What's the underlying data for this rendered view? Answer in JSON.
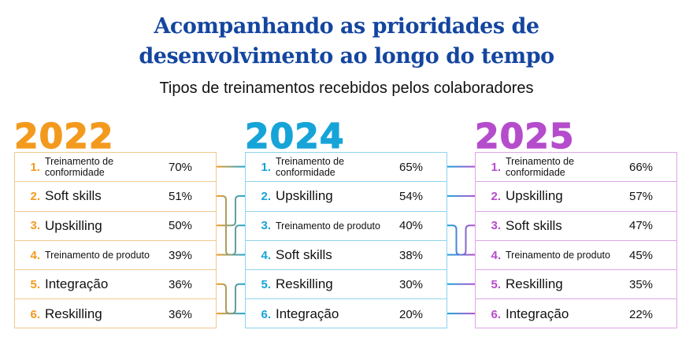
{
  "title_lines": [
    "Acompanhando as prioridades de",
    "desenvolvimento ao longo do tempo"
  ],
  "subtitle": "Tipos de treinamentos recebidos pelos colaboradores",
  "columns": [
    {
      "year": "2022",
      "color": "#f39a1e",
      "border": "#f2c98e",
      "items": [
        {
          "rank": "1.",
          "name": "Treinamento de conformidade",
          "pct": "70%"
        },
        {
          "rank": "2.",
          "name": "Soft skills",
          "pct": "51%"
        },
        {
          "rank": "3.",
          "name": "Upskilling",
          "pct": "50%"
        },
        {
          "rank": "4.",
          "name": "Treinamento de produto",
          "pct": "39%"
        },
        {
          "rank": "5.",
          "name": "Integração",
          "pct": "36%"
        },
        {
          "rank": "6.",
          "name": "Reskilling",
          "pct": "36%"
        }
      ]
    },
    {
      "year": "2024",
      "color": "#16a4d8",
      "border": "#8fd3ec",
      "items": [
        {
          "rank": "1.",
          "name": "Treinamento de conformidade",
          "pct": "65%"
        },
        {
          "rank": "2.",
          "name": "Upskilling",
          "pct": "54%"
        },
        {
          "rank": "3.",
          "name": "Treinamento de produto",
          "pct": "40%"
        },
        {
          "rank": "4.",
          "name": "Soft skills",
          "pct": "38%"
        },
        {
          "rank": "5.",
          "name": "Reskilling",
          "pct": "30%"
        },
        {
          "rank": "6.",
          "name": "Integração",
          "pct": "20%"
        }
      ]
    },
    {
      "year": "2025",
      "color": "#b54ccc",
      "border": "#dca6e6",
      "items": [
        {
          "rank": "1.",
          "name": "Treinamento de conformidade",
          "pct": "66%"
        },
        {
          "rank": "2.",
          "name": "Upskilling",
          "pct": "57%"
        },
        {
          "rank": "3.",
          "name": "Soft skills",
          "pct": "47%"
        },
        {
          "rank": "4.",
          "name": "Treinamento de produto",
          "pct": "45%"
        },
        {
          "rank": "5.",
          "name": "Reskilling",
          "pct": "35%"
        },
        {
          "rank": "6.",
          "name": "Integração",
          "pct": "22%"
        }
      ]
    }
  ]
}
